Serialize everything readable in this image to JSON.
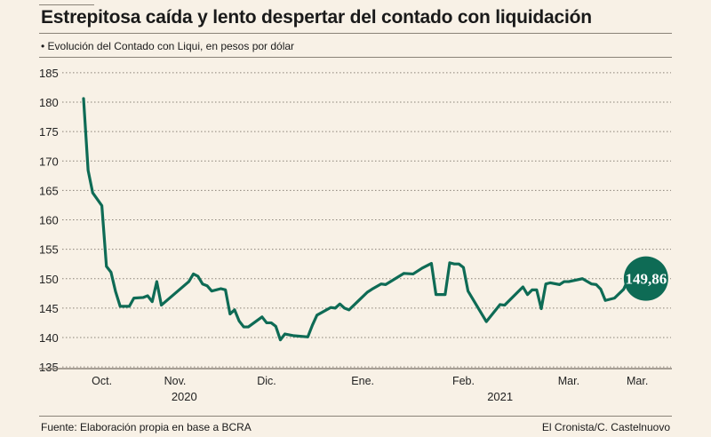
{
  "chart_data": {
    "type": "line",
    "title": "Estrepitosa caída y lento despertar del contado con liquidación",
    "subtitle": "• Evolución del Contado con Liqui, en pesos por dólar",
    "xlabel": "",
    "ylabel": "",
    "ylim": [
      135,
      185
    ],
    "yticks": [
      135,
      140,
      145,
      150,
      155,
      160,
      165,
      170,
      175,
      180,
      185
    ],
    "grid": true,
    "line_color": "#0e6b55",
    "x_ticks": [
      {
        "x": 4,
        "label": "Oct."
      },
      {
        "x": 20,
        "label": "Nov."
      },
      {
        "x": 40,
        "label": "Dic."
      },
      {
        "x": 61,
        "label": "Ene."
      },
      {
        "x": 83,
        "label": "Feb."
      },
      {
        "x": 106,
        "label": "Mar."
      },
      {
        "x": 121,
        "label": "Mar."
      }
    ],
    "year_labels": [
      {
        "x": 22,
        "label": "2020"
      },
      {
        "x": 91,
        "label": "2021"
      }
    ],
    "series": [
      {
        "points": [
          [
            0,
            180.6
          ],
          [
            1,
            168.4
          ],
          [
            2,
            164.6
          ],
          [
            4,
            162.4
          ],
          [
            5,
            152.1
          ],
          [
            6,
            151.1
          ],
          [
            7,
            147.8
          ],
          [
            8,
            145.3
          ],
          [
            10,
            145.3
          ],
          [
            11,
            146.7
          ],
          [
            13,
            146.8
          ],
          [
            14,
            147.1
          ],
          [
            15,
            146.1
          ],
          [
            16,
            149.5
          ],
          [
            17,
            145.5
          ],
          [
            23,
            149.5
          ],
          [
            24,
            150.8
          ],
          [
            25,
            150.4
          ],
          [
            26,
            149.1
          ],
          [
            27,
            148.8
          ],
          [
            28,
            147.9
          ],
          [
            30,
            148.3
          ],
          [
            31,
            148.1
          ],
          [
            32,
            144.0
          ],
          [
            33,
            144.7
          ],
          [
            34,
            142.8
          ],
          [
            35,
            141.8
          ],
          [
            36,
            141.8
          ],
          [
            39,
            143.5
          ],
          [
            40,
            142.5
          ],
          [
            41,
            142.5
          ],
          [
            42,
            141.9
          ],
          [
            43,
            139.6
          ],
          [
            44,
            140.6
          ],
          [
            46,
            140.3
          ],
          [
            49,
            140.1
          ],
          [
            50,
            142.1
          ],
          [
            51,
            143.8
          ],
          [
            54,
            145.1
          ],
          [
            55,
            145.0
          ],
          [
            56,
            145.7
          ],
          [
            57,
            145.0
          ],
          [
            58,
            144.7
          ],
          [
            60,
            146.2
          ],
          [
            62,
            147.7
          ],
          [
            63,
            148.2
          ],
          [
            65,
            149.1
          ],
          [
            66,
            149.0
          ],
          [
            70,
            150.9
          ],
          [
            72,
            150.8
          ],
          [
            74,
            151.8
          ],
          [
            76,
            152.6
          ],
          [
            77,
            147.3
          ],
          [
            79,
            147.3
          ],
          [
            80,
            152.7
          ],
          [
            81,
            152.5
          ],
          [
            82,
            152.5
          ],
          [
            83,
            151.9
          ],
          [
            84,
            147.9
          ],
          [
            88,
            142.7
          ],
          [
            91,
            145.6
          ],
          [
            92,
            145.5
          ],
          [
            96,
            148.6
          ],
          [
            97,
            147.3
          ],
          [
            98,
            148.1
          ],
          [
            99,
            148.1
          ],
          [
            100,
            144.9
          ],
          [
            101,
            149.1
          ],
          [
            102,
            149.3
          ],
          [
            104,
            149.0
          ],
          [
            105,
            149.5
          ],
          [
            106,
            149.5
          ],
          [
            109,
            150.0
          ],
          [
            111,
            149.1
          ],
          [
            112,
            149.0
          ],
          [
            113,
            148.2
          ],
          [
            114,
            146.3
          ],
          [
            116,
            146.7
          ],
          [
            118,
            148.2
          ],
          [
            119,
            149.86
          ]
        ]
      }
    ],
    "annotations": [
      {
        "label": "149,86"
      }
    ]
  },
  "footer": {
    "source": "Fuente:  Elaboración propia en base a BCRA",
    "credit": "El Cronista/C. Castelnuovo"
  }
}
